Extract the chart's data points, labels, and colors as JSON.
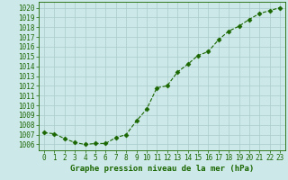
{
  "x": [
    0,
    1,
    2,
    3,
    4,
    5,
    6,
    7,
    8,
    9,
    10,
    11,
    12,
    13,
    14,
    15,
    16,
    17,
    18,
    19,
    20,
    21,
    22,
    23
  ],
  "y": [
    1007.2,
    1007.1,
    1006.6,
    1006.2,
    1006.0,
    1006.1,
    1006.1,
    1006.7,
    1007.0,
    1008.4,
    1009.6,
    1011.8,
    1012.0,
    1013.4,
    1014.2,
    1015.1,
    1015.5,
    1016.7,
    1017.6,
    1018.1,
    1018.8,
    1019.4,
    1019.7,
    1020.0
  ],
  "line_color": "#1a6600",
  "marker": "D",
  "marker_size": 2.5,
  "bg_color": "#cce8e8",
  "grid_color": "#aacccc",
  "xlabel": "Graphe pression niveau de la mer (hPa)",
  "xlabel_color": "#1a6600",
  "tick_color": "#1a6600",
  "ylabel_ticks": [
    1006,
    1007,
    1008,
    1009,
    1010,
    1011,
    1012,
    1013,
    1014,
    1015,
    1016,
    1017,
    1018,
    1019,
    1020
  ],
  "ylim": [
    1005.4,
    1020.6
  ],
  "xlim": [
    -0.5,
    23.5
  ],
  "axis_fontsize": 5.5,
  "label_fontsize": 6.5
}
